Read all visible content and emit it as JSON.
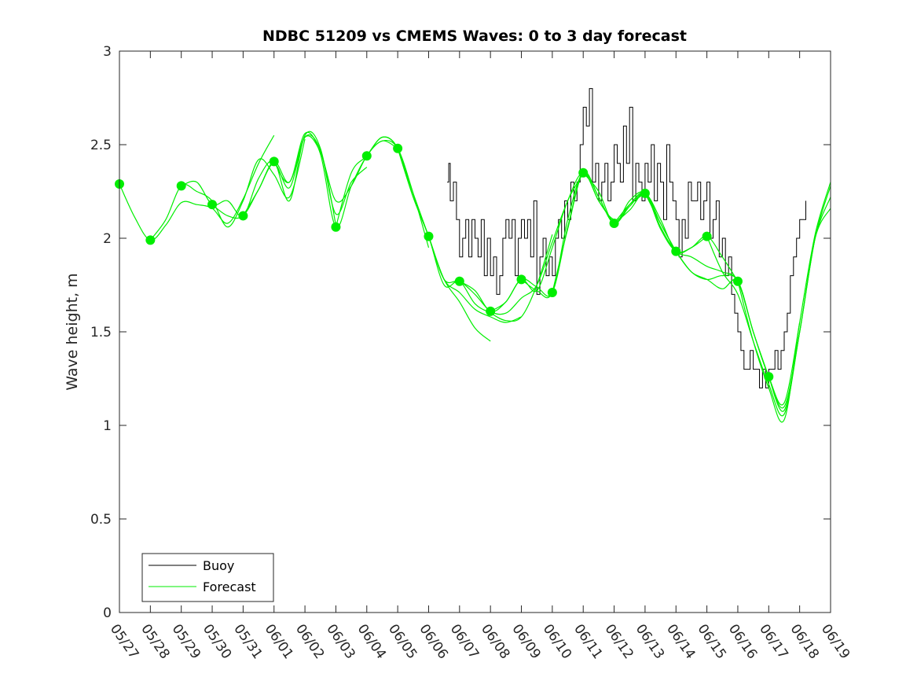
{
  "chart_data": {
    "type": "line",
    "title": "NDBC 51209 vs CMEMS Waves: 0 to 3 day forecast",
    "xlabel": "",
    "ylabel": "Wave height, m",
    "xlim": [
      0,
      23
    ],
    "ylim": [
      0,
      3
    ],
    "x_tick_labels": [
      "05/27",
      "05/28",
      "05/29",
      "05/30",
      "05/31",
      "06/01",
      "06/02",
      "06/03",
      "06/04",
      "06/05",
      "06/06",
      "06/07",
      "06/08",
      "06/09",
      "06/10",
      "06/11",
      "06/12",
      "06/13",
      "06/14",
      "06/15",
      "06/16",
      "06/17",
      "06/18",
      "06/19"
    ],
    "y_ticks": [
      0,
      0.5,
      1,
      1.5,
      2,
      2.5,
      3
    ],
    "y_tick_labels": [
      "0",
      "0.5",
      "1",
      "1.5",
      "2",
      "2.5",
      "3"
    ],
    "grid": false,
    "legend": {
      "position": "bottom-left",
      "entries": [
        "Buoy",
        "Forecast"
      ]
    },
    "colors": {
      "buoy": "#000000",
      "forecast": "#00ee00"
    },
    "series": [
      {
        "name": "Buoy",
        "x": [
          10.6,
          10.65,
          10.7,
          10.8,
          10.9,
          11.0,
          11.1,
          11.2,
          11.3,
          11.4,
          11.5,
          11.6,
          11.7,
          11.8,
          11.9,
          12.0,
          12.1,
          12.2,
          12.3,
          12.4,
          12.5,
          12.6,
          12.7,
          12.8,
          12.9,
          13.0,
          13.1,
          13.2,
          13.3,
          13.4,
          13.5,
          13.6,
          13.7,
          13.8,
          13.9,
          14.0,
          14.1,
          14.2,
          14.3,
          14.4,
          14.5,
          14.6,
          14.7,
          14.8,
          14.9,
          15.0,
          15.1,
          15.2,
          15.3,
          15.4,
          15.5,
          15.6,
          15.7,
          15.8,
          15.9,
          16.0,
          16.1,
          16.2,
          16.3,
          16.4,
          16.5,
          16.6,
          16.7,
          16.8,
          16.9,
          17.0,
          17.1,
          17.2,
          17.3,
          17.4,
          17.5,
          17.6,
          17.7,
          17.8,
          17.9,
          18.0,
          18.1,
          18.2,
          18.3,
          18.4,
          18.5,
          18.6,
          18.7,
          18.8,
          18.9,
          19.0,
          19.1,
          19.2,
          19.3,
          19.4,
          19.5,
          19.6,
          19.7,
          19.8,
          19.9,
          20.0,
          20.1,
          20.2,
          20.3,
          20.4,
          20.5,
          20.6,
          20.7,
          20.8,
          20.9,
          21.0,
          21.1,
          21.2,
          21.3,
          21.4,
          21.5,
          21.6,
          21.7,
          21.8,
          21.9,
          22.0,
          22.1,
          22.2
        ],
        "y": [
          2.3,
          2.4,
          2.2,
          2.3,
          2.1,
          1.9,
          2.0,
          2.1,
          1.9,
          2.1,
          2.0,
          1.9,
          2.1,
          1.8,
          2.0,
          1.8,
          1.9,
          1.7,
          1.8,
          2.0,
          2.1,
          2.0,
          2.1,
          1.8,
          2.0,
          2.1,
          2.0,
          2.1,
          1.9,
          2.2,
          1.7,
          1.9,
          2.0,
          1.8,
          1.9,
          1.8,
          2.0,
          2.1,
          2.0,
          2.2,
          2.1,
          2.3,
          2.2,
          2.3,
          2.5,
          2.7,
          2.6,
          2.8,
          2.3,
          2.4,
          2.2,
          2.3,
          2.4,
          2.2,
          2.3,
          2.5,
          2.4,
          2.3,
          2.6,
          2.4,
          2.7,
          2.2,
          2.4,
          2.3,
          2.2,
          2.4,
          2.3,
          2.5,
          2.2,
          2.4,
          2.3,
          2.1,
          2.5,
          2.3,
          2.2,
          2.1,
          1.9,
          2.1,
          2.0,
          2.3,
          2.2,
          2.2,
          2.3,
          2.1,
          2.2,
          2.3,
          2.0,
          2.1,
          2.2,
          1.9,
          2.0,
          1.8,
          1.9,
          1.7,
          1.6,
          1.5,
          1.4,
          1.3,
          1.3,
          1.4,
          1.3,
          1.3,
          1.2,
          1.3,
          1.2,
          1.3,
          1.3,
          1.4,
          1.3,
          1.4,
          1.5,
          1.6,
          1.8,
          1.9,
          2.0,
          2.1,
          2.1,
          2.2
        ]
      },
      {
        "name": "Forecast",
        "runs": [
          {
            "x": [
              0,
              0.5,
              1,
              1.5,
              2,
              2.5,
              3,
              3.5,
              4,
              4.5,
              5
            ],
            "y": [
              2.29,
              2.11,
              1.99,
              2.07,
              2.19,
              2.18,
              2.16,
              2.08,
              2.21,
              2.4,
              2.55
            ]
          },
          {
            "x": [
              1,
              1.5,
              2,
              2.5,
              3,
              3.5,
              4,
              4.5,
              5,
              5.5,
              6
            ],
            "y": [
              1.99,
              2.1,
              2.28,
              2.25,
              2.2,
              2.06,
              2.2,
              2.42,
              2.34,
              2.22,
              2.53
            ]
          },
          {
            "x": [
              2,
              2.5,
              3,
              3.5,
              4,
              4.5,
              5,
              5.5,
              6,
              6.5,
              7
            ],
            "y": [
              2.28,
              2.3,
              2.18,
              2.2,
              2.12,
              2.32,
              2.41,
              2.2,
              2.55,
              2.48,
              2.07
            ]
          },
          {
            "x": [
              3,
              3.5,
              4,
              4.5,
              5,
              5.5,
              6,
              6.5,
              7,
              7.5,
              8
            ],
            "y": [
              2.18,
              2.12,
              2.12,
              2.26,
              2.4,
              2.27,
              2.54,
              2.47,
              2.13,
              2.3,
              2.38
            ]
          },
          {
            "x": [
              4,
              4.5,
              5,
              5.5,
              6,
              6.5,
              7,
              7.5,
              8,
              8.5,
              9
            ],
            "y": [
              2.12,
              2.26,
              2.41,
              2.3,
              2.54,
              2.46,
              2.2,
              2.28,
              2.44,
              2.52,
              2.48
            ]
          },
          {
            "x": [
              5,
              5.5,
              6,
              6.5,
              7,
              7.5,
              8,
              8.5,
              9,
              9.5,
              10
            ],
            "y": [
              2.41,
              2.3,
              2.56,
              2.45,
              2.06,
              2.28,
              2.44,
              2.52,
              2.48,
              2.24,
              1.95
            ]
          },
          {
            "x": [
              7,
              7.5,
              8,
              8.5,
              9,
              9.5,
              10,
              10.5,
              11,
              11.5,
              12
            ],
            "y": [
              2.06,
              2.35,
              2.44,
              2.54,
              2.48,
              2.24,
              2.01,
              1.78,
              1.66,
              1.52,
              1.45
            ]
          },
          {
            "x": [
              8,
              8.5,
              9,
              9.5,
              10,
              10.5,
              11,
              11.5,
              12,
              12.5,
              13
            ],
            "y": [
              2.44,
              2.54,
              2.48,
              2.22,
              2.01,
              1.78,
              1.71,
              1.62,
              1.58,
              1.55,
              1.58
            ]
          },
          {
            "x": [
              9,
              9.5,
              10,
              10.5,
              11,
              11.5,
              12,
              12.5,
              13,
              13.5,
              14
            ],
            "y": [
              2.48,
              2.22,
              2.01,
              1.75,
              1.77,
              1.65,
              1.6,
              1.56,
              1.58,
              1.75,
              2.02
            ]
          },
          {
            "x": [
              10,
              10.5,
              11,
              11.5,
              12,
              12.5,
              13,
              13.5,
              14,
              14.5,
              15
            ],
            "y": [
              2.01,
              1.78,
              1.77,
              1.7,
              1.61,
              1.6,
              1.68,
              1.75,
              1.98,
              2.2,
              2.35
            ]
          },
          {
            "x": [
              11,
              11.5,
              12,
              12.5,
              13,
              13.5,
              14,
              14.5,
              15,
              15.5,
              16
            ],
            "y": [
              1.77,
              1.72,
              1.61,
              1.66,
              1.78,
              1.72,
              1.95,
              2.2,
              2.35,
              2.2,
              2.08
            ]
          },
          {
            "x": [
              12,
              12.5,
              13,
              13.5,
              14,
              14.5,
              15,
              15.5,
              16,
              16.5,
              17
            ],
            "y": [
              1.61,
              1.66,
              1.78,
              1.74,
              1.71,
              2.06,
              2.35,
              2.22,
              2.08,
              2.18,
              2.24
            ]
          },
          {
            "x": [
              13,
              13.5,
              14,
              14.5,
              15,
              15.5,
              16,
              16.5,
              17,
              17.5,
              18
            ],
            "y": [
              1.78,
              1.72,
              1.71,
              2.1,
              2.35,
              2.2,
              2.1,
              2.15,
              2.24,
              2.08,
              1.93
            ]
          },
          {
            "x": [
              14,
              14.5,
              15,
              15.5,
              16,
              16.5,
              17,
              17.5,
              18,
              18.5,
              19
            ],
            "y": [
              1.71,
              2.05,
              2.35,
              2.22,
              2.08,
              2.17,
              2.24,
              2.1,
              1.93,
              1.95,
              2.01
            ]
          },
          {
            "x": [
              15,
              15.5,
              16,
              16.5,
              17,
              17.5,
              18,
              18.5,
              19,
              19.5,
              20
            ],
            "y": [
              2.35,
              2.25,
              2.08,
              2.2,
              2.24,
              2.05,
              1.93,
              1.95,
              2.01,
              1.9,
              1.77
            ]
          },
          {
            "x": [
              16,
              16.5,
              17,
              17.5,
              18,
              18.5,
              19,
              19.5,
              20,
              20.5,
              21
            ],
            "y": [
              2.08,
              2.18,
              2.24,
              2.06,
              1.93,
              1.9,
              1.85,
              1.82,
              1.77,
              1.5,
              1.26
            ]
          },
          {
            "x": [
              17,
              17.5,
              18,
              18.5,
              19,
              19.5,
              20,
              20.5,
              21,
              21.5,
              22
            ],
            "y": [
              2.24,
              2.08,
              1.93,
              1.82,
              1.78,
              1.8,
              1.77,
              1.5,
              1.26,
              1.12,
              1.55
            ]
          },
          {
            "x": [
              18,
              18.5,
              19,
              19.5,
              20,
              20.5,
              21,
              21.5,
              22,
              22.5,
              23
            ],
            "y": [
              1.93,
              1.82,
              1.78,
              1.73,
              1.77,
              1.5,
              1.26,
              1.1,
              1.5,
              2.0,
              2.22
            ]
          },
          {
            "x": [
              19,
              19.5,
              20,
              20.5,
              21,
              21.5,
              22,
              22.5,
              23
            ],
            "y": [
              2.01,
              1.82,
              1.7,
              1.45,
              1.22,
              1.06,
              1.5,
              2.0,
              2.28
            ]
          },
          {
            "x": [
              20,
              20.5,
              21,
              21.5,
              22,
              22.5,
              23
            ],
            "y": [
              1.77,
              1.45,
              1.2,
              1.03,
              1.55,
              2.02,
              2.3
            ]
          },
          {
            "x": [
              21,
              21.5,
              22,
              22.5,
              23
            ],
            "y": [
              1.26,
              1.08,
              1.5,
              2.0,
              2.16
            ]
          }
        ],
        "markers": {
          "x": [
            0,
            1,
            2,
            3,
            4,
            5,
            7,
            8,
            9,
            10,
            11,
            12,
            13,
            14,
            15,
            16,
            17,
            18,
            19,
            20,
            21
          ],
          "y": [
            2.29,
            1.99,
            2.28,
            2.18,
            2.12,
            2.41,
            2.06,
            2.44,
            2.48,
            2.01,
            1.77,
            1.61,
            1.78,
            1.71,
            2.35,
            2.08,
            2.24,
            1.93,
            2.01,
            1.77,
            1.26
          ]
        }
      }
    ]
  }
}
